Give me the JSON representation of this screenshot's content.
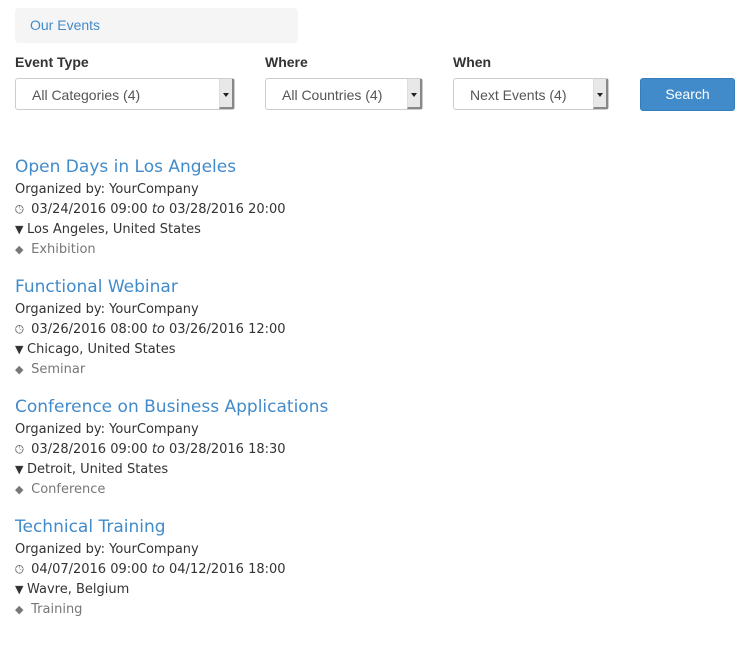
{
  "breadcrumb": {
    "label": "Our Events"
  },
  "filters": {
    "event_type": {
      "label": "Event Type",
      "value": "All Categories (4)"
    },
    "where": {
      "label": "Where",
      "value": "All Countries (4)"
    },
    "when": {
      "label": "When",
      "value": "Next Events (4)"
    },
    "search_label": "Search"
  },
  "connector": "to",
  "events": [
    {
      "title": "Open Days in Los Angeles",
      "organizer": "Organized by: YourCompany",
      "start": "03/24/2016 09:00",
      "end": "03/28/2016 20:00",
      "location": "Los Angeles, United States",
      "tag": "Exhibition"
    },
    {
      "title": "Functional Webinar",
      "organizer": "Organized by: YourCompany",
      "start": "03/26/2016 08:00",
      "end": "03/26/2016 12:00",
      "location": "Chicago, United States",
      "tag": "Seminar"
    },
    {
      "title": "Conference on Business Applications",
      "organizer": "Organized by: YourCompany",
      "start": "03/28/2016 09:00",
      "end": "03/28/2016 18:30",
      "location": "Detroit, United States",
      "tag": "Conference"
    },
    {
      "title": "Technical Training",
      "organizer": "Organized by: YourCompany",
      "start": "04/07/2016 09:00",
      "end": "04/12/2016 18:00",
      "location": "Wavre, Belgium",
      "tag": "Training"
    }
  ],
  "colors": {
    "link": "#428bca",
    "button": "#428bca",
    "tag": "#777777"
  }
}
